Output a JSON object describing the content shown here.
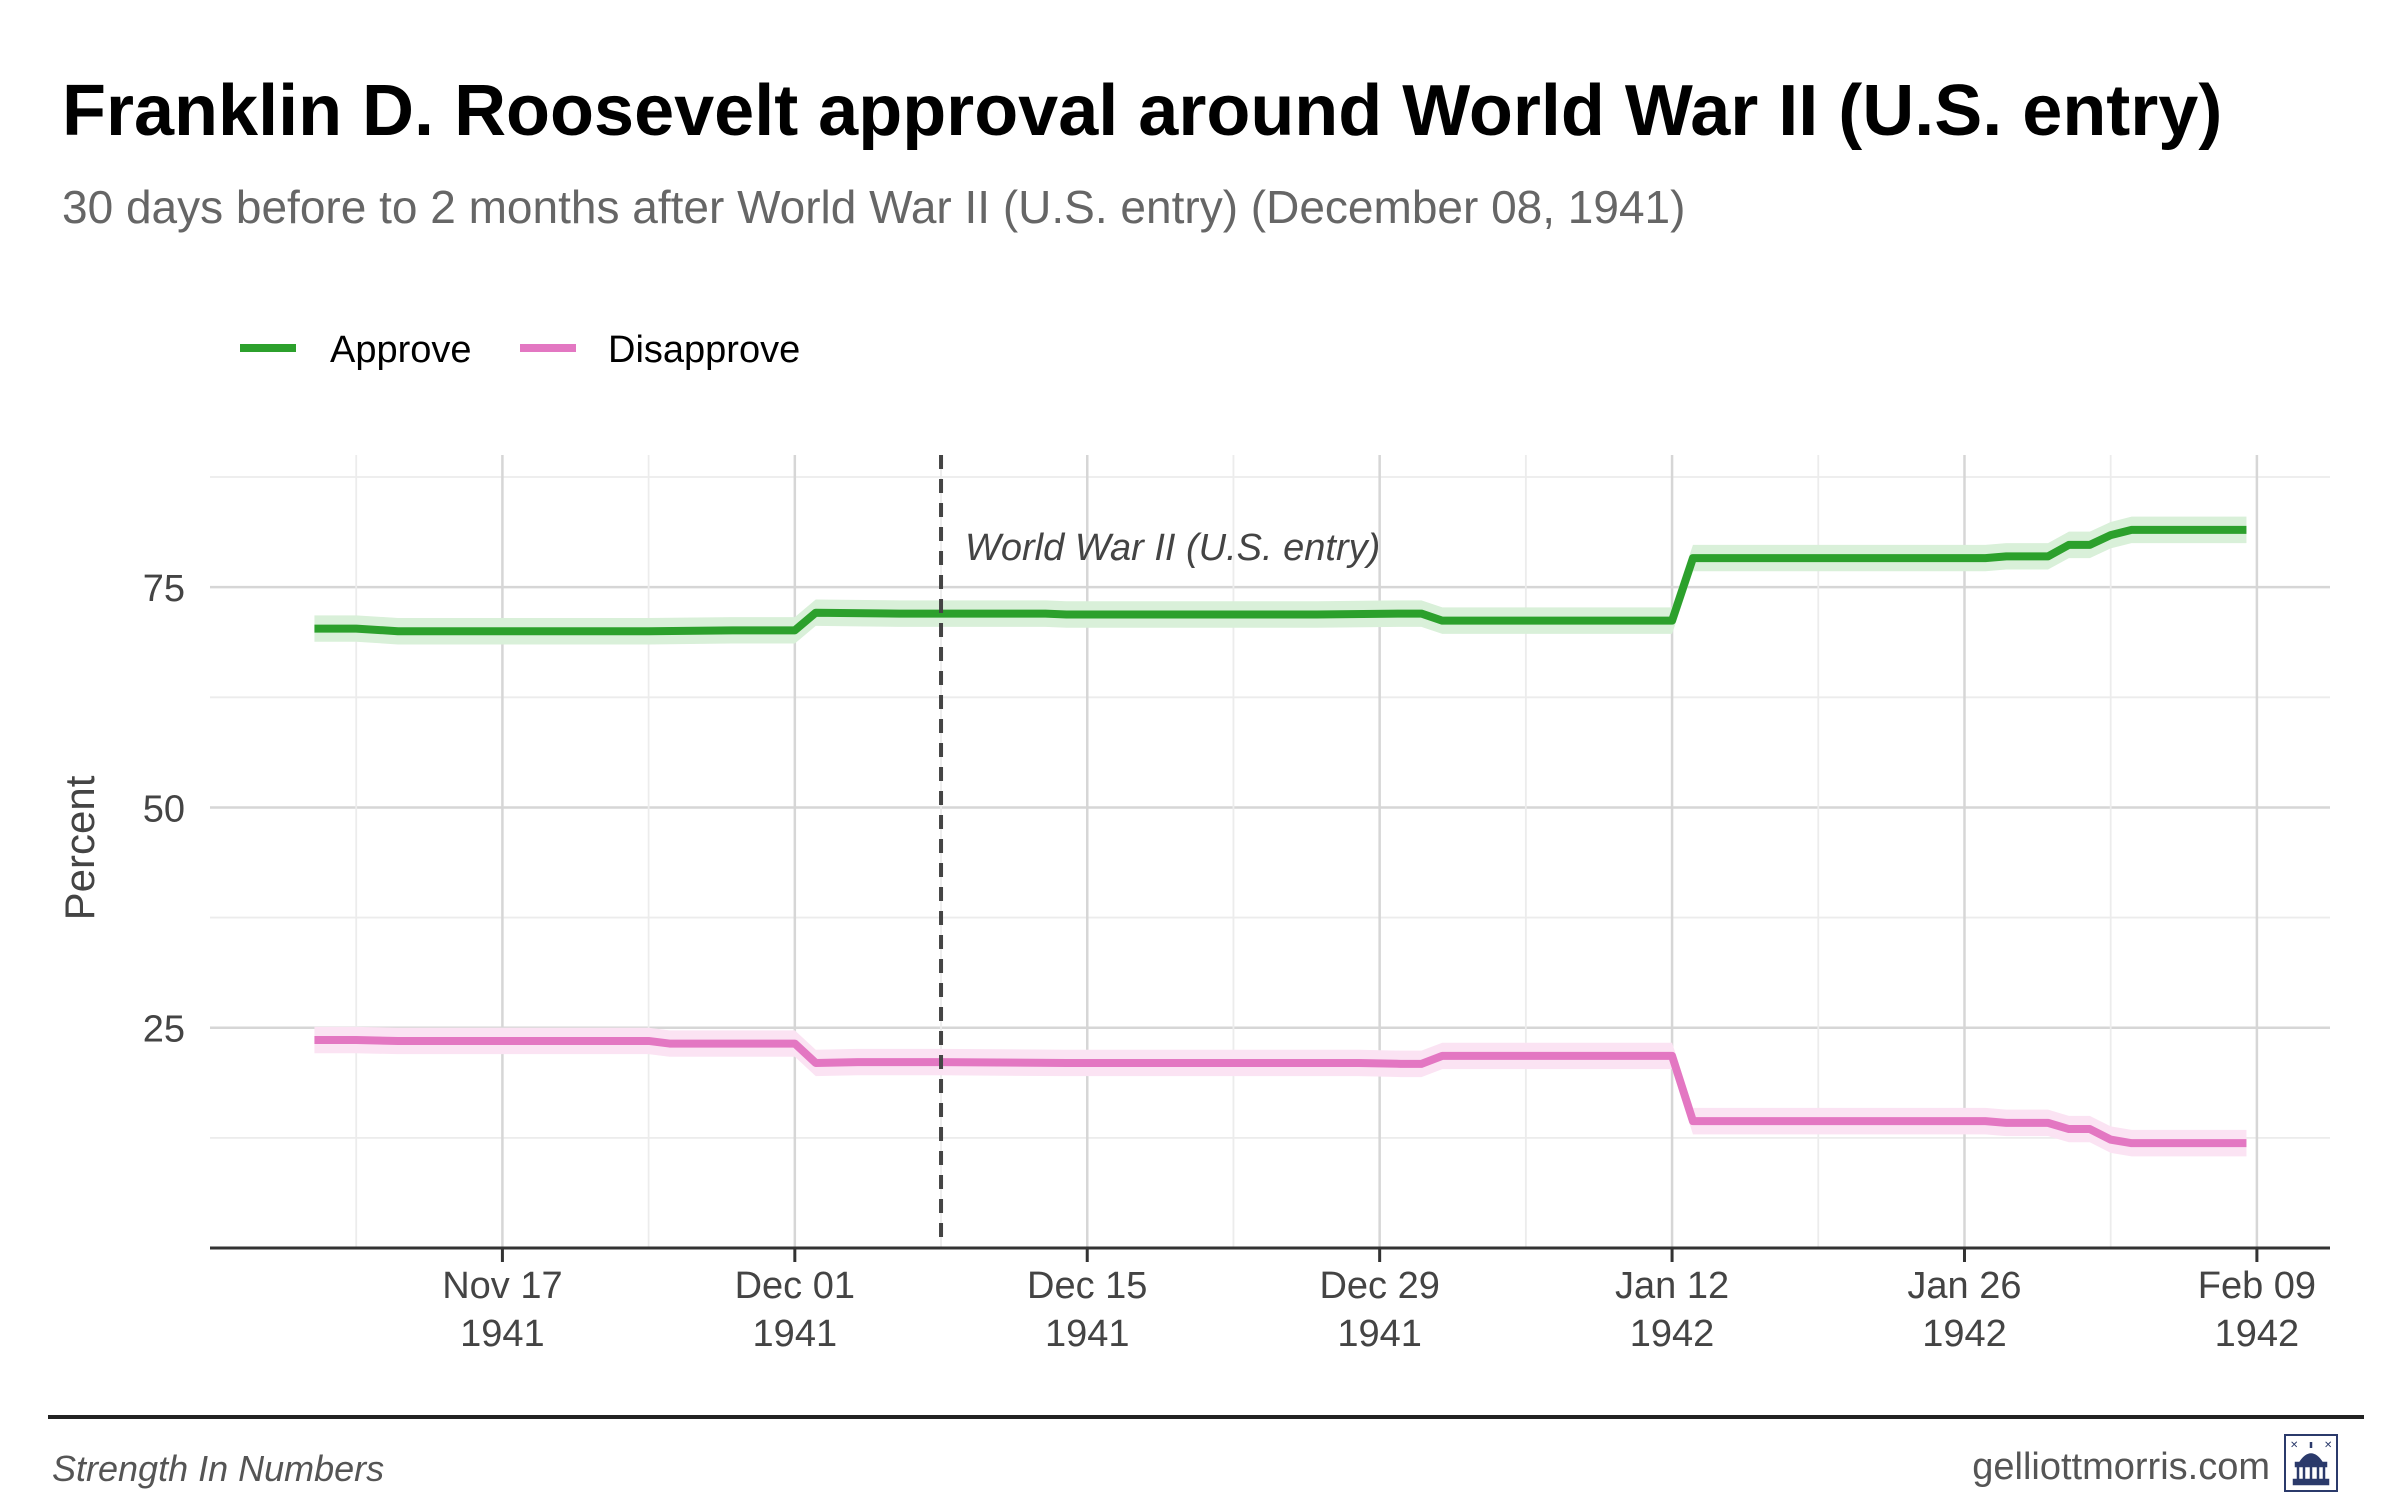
{
  "title": "Franklin D. Roosevelt approval around World War II (U.S. entry)",
  "subtitle": "30 days before to 2 months after World War II (U.S. entry) (December 08, 1941)",
  "footer": {
    "source": "Strength In Numbers",
    "site": "gelliottmorris.com"
  },
  "colors": {
    "approve": "#2ca02c",
    "approve_band": "#d9f0d9",
    "disapprove": "#e377c2",
    "disapprove_band": "#fbe3f3"
  },
  "chart_data": {
    "type": "line",
    "title": "Franklin D. Roosevelt approval around World War II (U.S. entry)",
    "ylabel": "Percent",
    "xlabel": "",
    "ylim": [
      0,
      90
    ],
    "yticks": [
      25,
      50,
      75
    ],
    "legend_position": "top-left",
    "x_ticks": [
      {
        "day": 9,
        "line1": "Nov 17",
        "line2": "1941"
      },
      {
        "day": 23,
        "line1": "Dec 01",
        "line2": "1941"
      },
      {
        "day": 37,
        "line1": "Dec 15",
        "line2": "1941"
      },
      {
        "day": 51,
        "line1": "Dec 29",
        "line2": "1941"
      },
      {
        "day": 65,
        "line1": "Jan 12",
        "line2": "1942"
      },
      {
        "day": 79,
        "line1": "Jan 26",
        "line2": "1942"
      },
      {
        "day": 93,
        "line1": "Feb 09",
        "line2": "1942"
      }
    ],
    "x_note": "day = days since Nov 08, 1941",
    "xlim": [
      -5,
      96.5
    ],
    "event": {
      "day": 30,
      "label": "World War II (U.S. entry)"
    },
    "series": [
      {
        "name": "Approve",
        "band": 1.5,
        "points": [
          [
            0,
            70.3
          ],
          [
            2,
            70.3
          ],
          [
            4,
            70.0
          ],
          [
            8,
            70.0
          ],
          [
            12,
            70.0
          ],
          [
            16,
            70.0
          ],
          [
            20,
            70.1
          ],
          [
            23,
            70.1
          ],
          [
            24,
            72.1
          ],
          [
            28,
            72.0
          ],
          [
            35,
            72.0
          ],
          [
            36,
            71.9
          ],
          [
            40,
            71.9
          ],
          [
            48,
            71.9
          ],
          [
            52,
            72.0
          ],
          [
            53,
            72.0
          ],
          [
            54,
            71.2
          ],
          [
            60,
            71.2
          ],
          [
            64,
            71.2
          ],
          [
            65,
            71.2
          ],
          [
            66,
            78.3
          ],
          [
            72,
            78.3
          ],
          [
            78,
            78.3
          ],
          [
            80,
            78.3
          ],
          [
            81,
            78.5
          ],
          [
            83,
            78.5
          ],
          [
            84,
            79.8
          ],
          [
            85,
            79.8
          ],
          [
            86,
            80.9
          ],
          [
            87,
            81.5
          ],
          [
            90,
            81.5
          ],
          [
            92.5,
            81.5
          ]
        ]
      },
      {
        "name": "Disapprove",
        "band": 1.5,
        "points": [
          [
            0,
            23.6
          ],
          [
            2,
            23.6
          ],
          [
            4,
            23.5
          ],
          [
            8,
            23.5
          ],
          [
            12,
            23.5
          ],
          [
            16,
            23.5
          ],
          [
            17,
            23.2
          ],
          [
            20,
            23.2
          ],
          [
            23,
            23.2
          ],
          [
            24,
            21.0
          ],
          [
            26,
            21.1
          ],
          [
            30,
            21.1
          ],
          [
            36,
            21.0
          ],
          [
            44,
            21.0
          ],
          [
            50,
            21.0
          ],
          [
            52,
            20.9
          ],
          [
            53,
            20.9
          ],
          [
            54,
            21.8
          ],
          [
            60,
            21.8
          ],
          [
            64,
            21.8
          ],
          [
            65,
            21.8
          ],
          [
            66,
            14.4
          ],
          [
            72,
            14.4
          ],
          [
            78,
            14.4
          ],
          [
            80,
            14.4
          ],
          [
            81,
            14.2
          ],
          [
            83,
            14.2
          ],
          [
            84,
            13.5
          ],
          [
            85,
            13.5
          ],
          [
            86,
            12.3
          ],
          [
            87,
            11.9
          ],
          [
            90,
            11.9
          ],
          [
            92.5,
            11.9
          ]
        ]
      }
    ]
  }
}
